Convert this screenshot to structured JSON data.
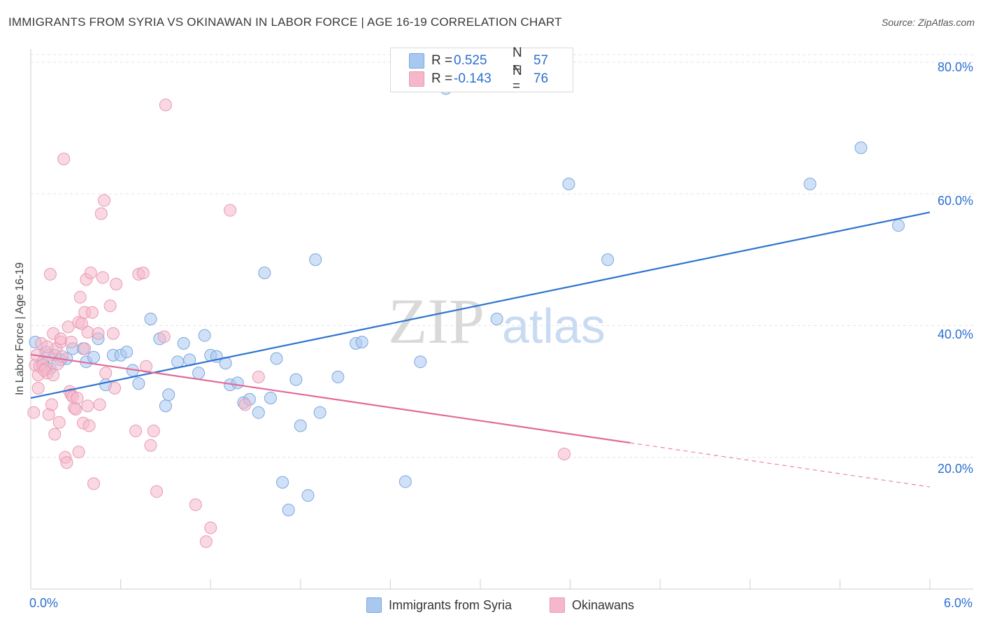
{
  "header": {
    "title": "IMMIGRANTS FROM SYRIA VS OKINAWAN IN LABOR FORCE | AGE 16-19 CORRELATION CHART",
    "source": "Source: ZipAtlas.com"
  },
  "watermark": {
    "zip": "ZIP",
    "atlas": "atlas"
  },
  "legend": {
    "rows": [
      {
        "r_label": "R =",
        "r_value": "0.525",
        "n_label": "N =",
        "n_value": "57",
        "color": "#a9c8f0"
      },
      {
        "r_label": "R =",
        "r_value": "-0.143",
        "n_label": "N =",
        "n_value": "76",
        "color": "#f5b8cb"
      }
    ]
  },
  "bottom_legend": [
    {
      "label": "Immigrants from Syria",
      "color": "#a9c8f0"
    },
    {
      "label": "Okinawans",
      "color": "#f5b8cb"
    }
  ],
  "axes": {
    "ylabel": "In Labor Force | Age 16-19",
    "x_min_label": "0.0%",
    "x_max_label": "6.0%",
    "y_tick_labels": [
      "80.0%",
      "60.0%",
      "40.0%",
      "20.0%"
    ]
  },
  "chart_data": {
    "type": "scatter",
    "title": "IMMIGRANTS FROM SYRIA VS OKINAWAN IN LABOR FORCE | AGE 16-19 CORRELATION CHART",
    "xlabel": "",
    "ylabel": "In Labor Force | Age 16-19",
    "xlim": [
      0,
      6.0
    ],
    "ylim": [
      0,
      82
    ],
    "y_ticks": [
      20,
      40,
      60,
      80
    ],
    "grid": true,
    "series": [
      {
        "name": "Immigrants from Syria",
        "color": "#a9c8f0",
        "stroke": "#7aa7e0",
        "trend": {
          "x": [
            0.0,
            6.0
          ],
          "y": [
            29.0,
            57.2
          ],
          "color": "#2f74d0"
        },
        "points": [
          [
            0.03,
            37.5
          ],
          [
            0.1,
            36.0
          ],
          [
            0.16,
            35.5
          ],
          [
            0.2,
            34.8
          ],
          [
            0.28,
            36.5
          ],
          [
            0.37,
            34.5
          ],
          [
            0.45,
            38.0
          ],
          [
            0.5,
            31.0
          ],
          [
            0.55,
            35.5
          ],
          [
            0.6,
            35.5
          ],
          [
            0.64,
            36.0
          ],
          [
            0.68,
            33.2
          ],
          [
            0.72,
            31.2
          ],
          [
            0.8,
            41.0
          ],
          [
            0.86,
            38.0
          ],
          [
            0.9,
            27.8
          ],
          [
            0.92,
            29.5
          ],
          [
            0.98,
            34.5
          ],
          [
            1.02,
            37.3
          ],
          [
            1.06,
            34.8
          ],
          [
            1.12,
            32.8
          ],
          [
            1.16,
            38.5
          ],
          [
            1.2,
            35.5
          ],
          [
            1.24,
            35.3
          ],
          [
            1.3,
            34.3
          ],
          [
            1.33,
            31.0
          ],
          [
            1.38,
            31.3
          ],
          [
            1.42,
            28.3
          ],
          [
            1.46,
            28.8
          ],
          [
            1.52,
            26.8
          ],
          [
            1.56,
            48.0
          ],
          [
            1.6,
            29.0
          ],
          [
            1.64,
            35.0
          ],
          [
            1.68,
            16.2
          ],
          [
            1.72,
            12.0
          ],
          [
            1.77,
            31.8
          ],
          [
            1.8,
            24.8
          ],
          [
            1.85,
            14.2
          ],
          [
            1.9,
            50.0
          ],
          [
            1.93,
            26.8
          ],
          [
            2.05,
            32.2
          ],
          [
            2.17,
            37.3
          ],
          [
            2.21,
            37.5
          ],
          [
            2.5,
            16.3
          ],
          [
            2.6,
            34.5
          ],
          [
            2.77,
            76.0
          ],
          [
            3.11,
            41.0
          ],
          [
            3.59,
            61.5
          ],
          [
            3.85,
            50.0
          ],
          [
            5.2,
            61.5
          ],
          [
            5.54,
            67.0
          ],
          [
            5.79,
            55.2
          ],
          [
            0.13,
            33.5
          ],
          [
            0.35,
            36.5
          ],
          [
            0.24,
            35.0
          ],
          [
            0.42,
            35.2
          ],
          [
            0.08,
            34.5
          ]
        ]
      },
      {
        "name": "Okinawans",
        "color": "#f5b8cb",
        "stroke": "#e79ab4",
        "trend": {
          "x": [
            0.0,
            4.0
          ],
          "y": [
            35.6,
            22.2
          ],
          "color": "#e26a98"
        },
        "trend_dashed": {
          "x": [
            4.0,
            6.0
          ],
          "y": [
            22.2,
            15.5
          ]
        },
        "points": [
          [
            0.02,
            26.8
          ],
          [
            0.03,
            34.0
          ],
          [
            0.04,
            35.5
          ],
          [
            0.05,
            32.5
          ],
          [
            0.06,
            33.8
          ],
          [
            0.07,
            37.3
          ],
          [
            0.08,
            34.0
          ],
          [
            0.1,
            33.5
          ],
          [
            0.11,
            32.8
          ],
          [
            0.12,
            35.5
          ],
          [
            0.12,
            26.5
          ],
          [
            0.13,
            47.8
          ],
          [
            0.14,
            28.0
          ],
          [
            0.15,
            38.8
          ],
          [
            0.16,
            23.5
          ],
          [
            0.17,
            36.5
          ],
          [
            0.18,
            34.2
          ],
          [
            0.19,
            25.3
          ],
          [
            0.2,
            37.5
          ],
          [
            0.2,
            38.0
          ],
          [
            0.21,
            35.3
          ],
          [
            0.22,
            65.3
          ],
          [
            0.23,
            20.0
          ],
          [
            0.24,
            19.2
          ],
          [
            0.25,
            39.8
          ],
          [
            0.26,
            30.0
          ],
          [
            0.27,
            29.5
          ],
          [
            0.27,
            37.5
          ],
          [
            0.28,
            29.2
          ],
          [
            0.29,
            27.5
          ],
          [
            0.3,
            27.3
          ],
          [
            0.31,
            29.0
          ],
          [
            0.32,
            40.5
          ],
          [
            0.32,
            20.8
          ],
          [
            0.33,
            44.3
          ],
          [
            0.34,
            40.3
          ],
          [
            0.35,
            25.2
          ],
          [
            0.36,
            36.5
          ],
          [
            0.36,
            42.0
          ],
          [
            0.37,
            47.0
          ],
          [
            0.38,
            27.8
          ],
          [
            0.38,
            39.0
          ],
          [
            0.39,
            24.8
          ],
          [
            0.4,
            48.0
          ],
          [
            0.41,
            42.0
          ],
          [
            0.42,
            16.0
          ],
          [
            0.45,
            38.8
          ],
          [
            0.46,
            28.0
          ],
          [
            0.47,
            57.0
          ],
          [
            0.48,
            47.3
          ],
          [
            0.49,
            59.0
          ],
          [
            0.5,
            32.8
          ],
          [
            0.53,
            43.0
          ],
          [
            0.55,
            38.8
          ],
          [
            0.56,
            30.5
          ],
          [
            0.57,
            46.3
          ],
          [
            0.7,
            24.0
          ],
          [
            0.72,
            47.8
          ],
          [
            0.75,
            48.0
          ],
          [
            0.77,
            33.8
          ],
          [
            0.8,
            21.8
          ],
          [
            0.82,
            24.0
          ],
          [
            0.84,
            14.8
          ],
          [
            0.89,
            38.3
          ],
          [
            0.9,
            73.5
          ],
          [
            1.1,
            12.8
          ],
          [
            1.17,
            7.2
          ],
          [
            1.2,
            9.3
          ],
          [
            1.33,
            57.5
          ],
          [
            1.43,
            28.0
          ],
          [
            1.52,
            32.2
          ],
          [
            3.56,
            20.5
          ],
          [
            0.05,
            30.5
          ],
          [
            0.09,
            33.2
          ],
          [
            0.15,
            32.5
          ],
          [
            0.11,
            36.8
          ]
        ]
      }
    ]
  }
}
